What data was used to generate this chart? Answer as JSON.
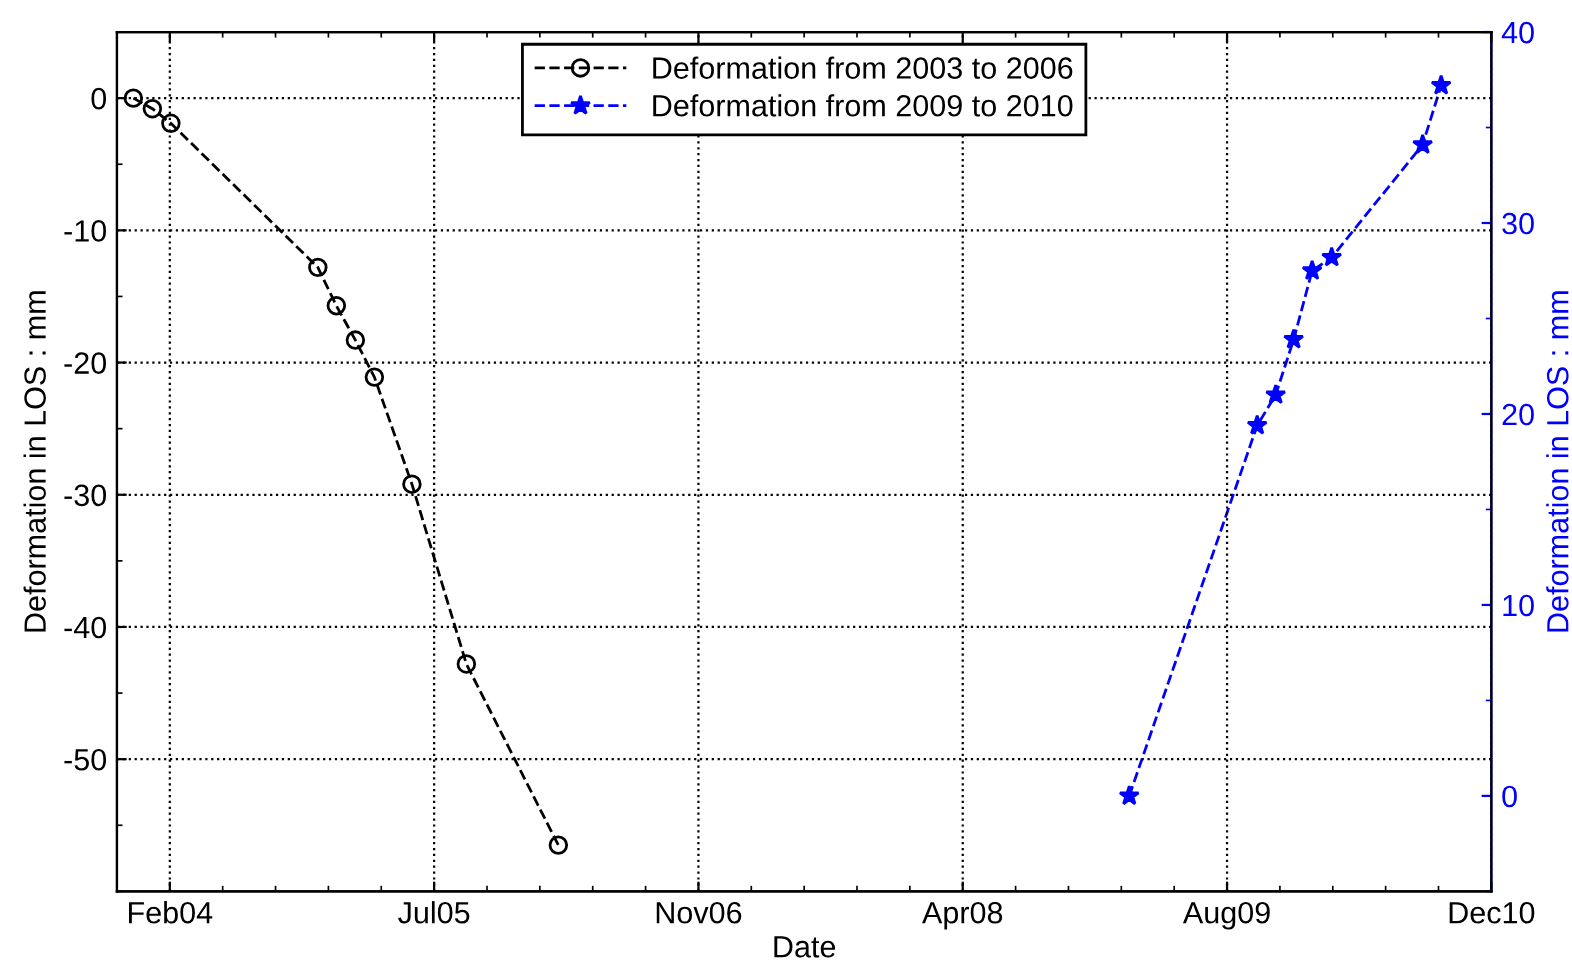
{
  "chart_data": {
    "type": "line",
    "xlabel": "Date",
    "ylabel": "Deformation in LOS : mm",
    "y2label": "Deformation in LOS : mm",
    "xlim": [
      "2003-11-18",
      "2010-12-31"
    ],
    "xticks": [
      {
        "value": "2004-02-26",
        "label": "Feb04"
      },
      {
        "value": "2005-07-10",
        "label": "Jul05"
      },
      {
        "value": "2006-11-22",
        "label": "Nov06"
      },
      {
        "value": "2008-04-05",
        "label": "Apr08"
      },
      {
        "value": "2009-08-18",
        "label": "Aug09"
      },
      {
        "value": "2010-12-31",
        "label": "Dec10"
      }
    ],
    "ylim": [
      -60,
      5
    ],
    "yticks": [
      -50,
      -40,
      -30,
      -20,
      -10,
      0
    ],
    "y2lim": [
      -5,
      40
    ],
    "y2ticks": [
      0,
      10,
      20,
      30,
      40
    ],
    "grid": true,
    "legend": "top",
    "line_style": "dashed",
    "series": [
      {
        "name": "Deformation from 2003 to 2006",
        "color": "#000000",
        "marker": "circle",
        "x": [
          "2003-12-19",
          "2004-01-24",
          "2004-02-28",
          "2004-12-02",
          "2005-01-06",
          "2005-02-11",
          "2005-03-19",
          "2005-05-29",
          "2005-09-09",
          "2006-03-02"
        ],
        "values": [
          0,
          -0.8,
          -1.9,
          -12.8,
          -15.7,
          -18.3,
          -21.1,
          -29.2,
          -42.8,
          -56.5
        ]
      },
      {
        "name": "Deformation from 2009 to 2010",
        "color": "#0000ff",
        "marker": "star",
        "axis": "y2",
        "x": [
          "2009-02-14",
          "2009-10-14",
          "2009-11-18",
          "2009-12-22",
          "2010-01-26",
          "2010-03-04",
          "2010-08-23",
          "2010-09-27"
        ],
        "values": [
          0,
          19.4,
          21.0,
          23.9,
          27.5,
          28.2,
          34.1,
          37.2
        ]
      }
    ]
  }
}
